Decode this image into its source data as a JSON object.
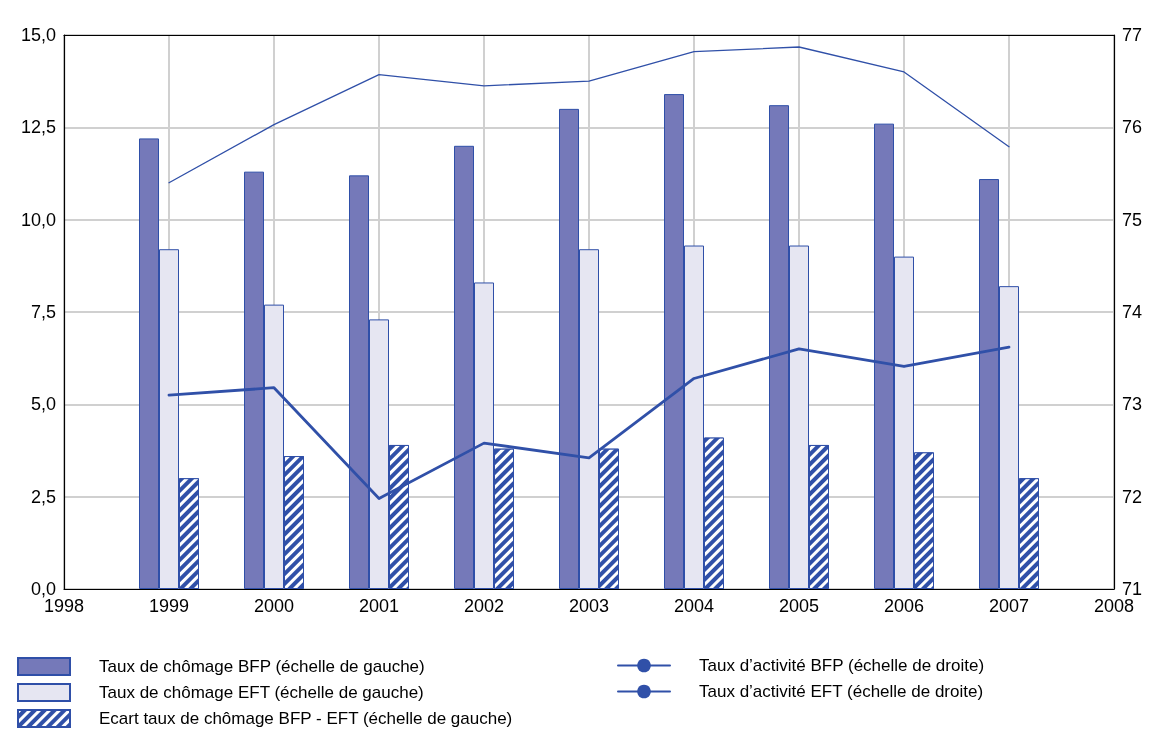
{
  "chart_data": {
    "type": "bar",
    "x": [
      1999,
      2000,
      2001,
      2002,
      2003,
      2004,
      2005,
      2006,
      2007
    ],
    "xlim": [
      1998,
      2008
    ],
    "xticks": [
      1998,
      1999,
      2000,
      2001,
      2002,
      2003,
      2004,
      2005,
      2006,
      2007,
      2008
    ],
    "ylim": [
      0,
      15
    ],
    "yticks": [
      {
        "value": 0,
        "label": "0,0"
      },
      {
        "value": 2.5,
        "label": "2,5"
      },
      {
        "value": 5,
        "label": "5,0"
      },
      {
        "value": 7.5,
        "label": "7,5"
      },
      {
        "value": 10,
        "label": "10,0"
      },
      {
        "value": 12.5,
        "label": "12,5"
      },
      {
        "value": 15,
        "label": "15,0"
      }
    ],
    "y2lim": [
      71,
      77
    ],
    "y2ticks": [
      71,
      72,
      73,
      74,
      75,
      76,
      77
    ],
    "grid": true,
    "legend": "bottom",
    "marker": "none",
    "series": [
      {
        "name": "Taux de chômage BFP (échelle de gauche)",
        "color": "#7579b9",
        "values": [
          12.2,
          11.3,
          11.2,
          12.0,
          13.0,
          13.4,
          13.1,
          12.6,
          11.1
        ]
      },
      {
        "name": "Taux de chômage EFT (échelle de gauche)",
        "color": "#e6e6f2",
        "values": [
          9.2,
          7.7,
          7.3,
          8.3,
          9.2,
          9.3,
          9.3,
          9.0,
          8.2
        ]
      },
      {
        "name": "Ecart taux de chômage BFP - EFT (échelle de gauche)",
        "color": "#3050a8",
        "values": [
          3.0,
          3.6,
          3.9,
          3.8,
          3.8,
          4.1,
          3.9,
          3.7,
          3.0
        ]
      },
      {
        "name": "Taux d’activité BFP (échelle de droite)",
        "type": "line",
        "axis": "y2",
        "color": "#3050a8",
        "line_style": "solid",
        "values": [
          75.4,
          76.03,
          76.57,
          76.45,
          76.5,
          76.82,
          76.87,
          76.6,
          75.79
        ]
      },
      {
        "name": "Taux d’activité EFT (échelle de droite)",
        "type": "line",
        "axis": "y2",
        "color": "#3050a8",
        "line_style": "solid",
        "values": [
          73.1,
          73.18,
          71.98,
          72.58,
          72.42,
          73.28,
          73.6,
          73.41,
          73.62
        ]
      }
    ]
  }
}
